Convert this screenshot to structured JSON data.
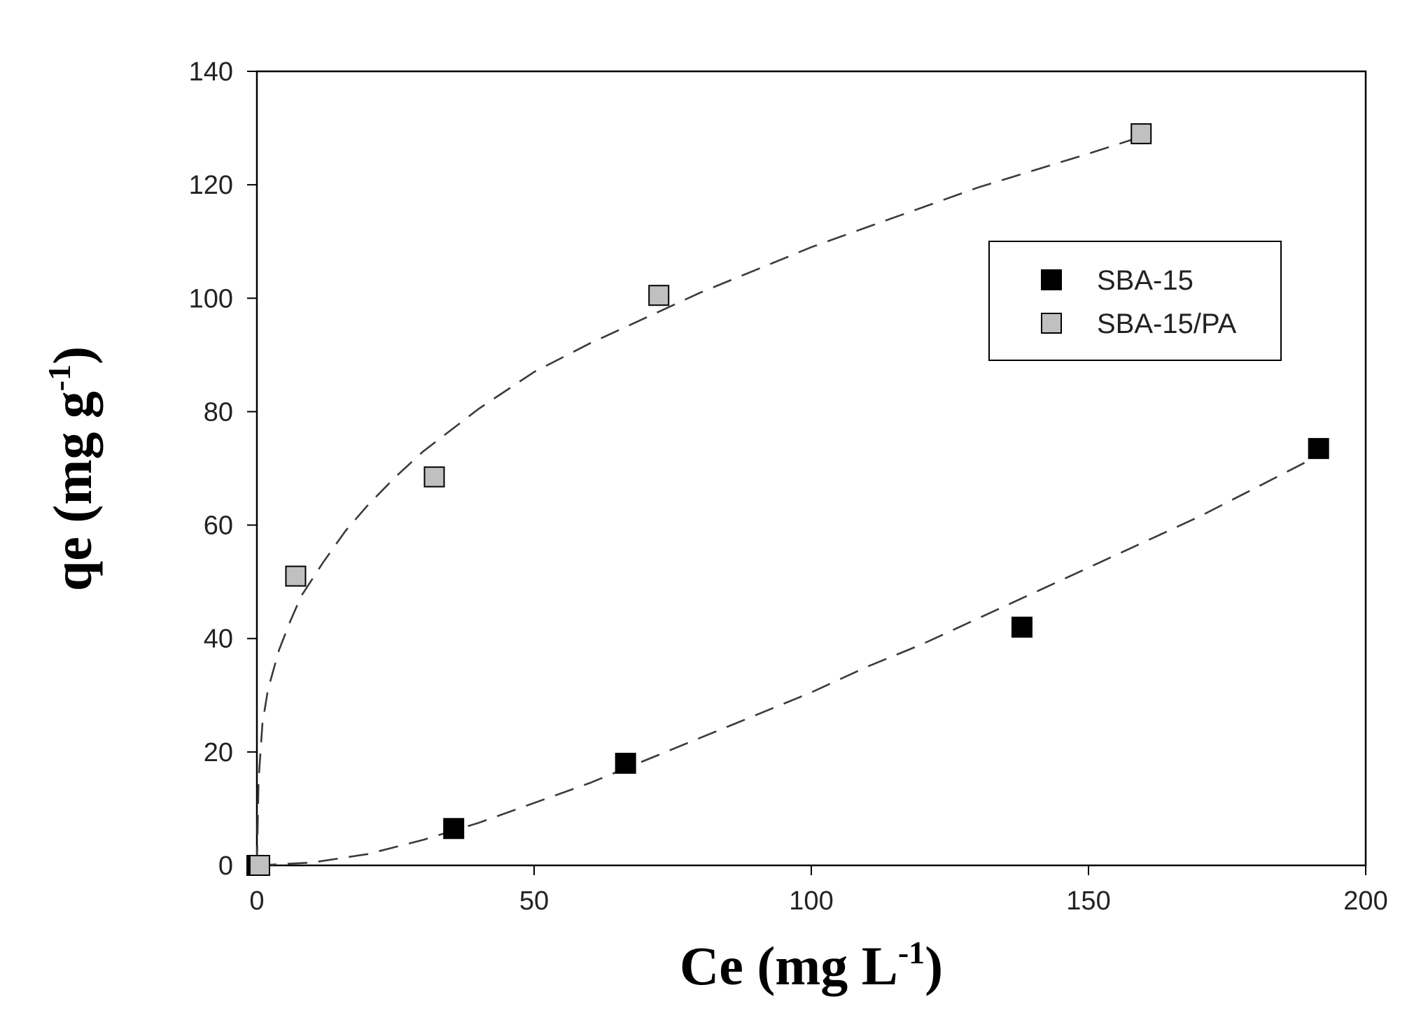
{
  "chart_data": {
    "type": "scatter",
    "title": "",
    "xlabel": {
      "base": "Ce (mg L",
      "sup": "-1",
      "tail": ")"
    },
    "ylabel": {
      "base": "qe (mg g",
      "sup": "-1",
      "tail": ")"
    },
    "xlim": [
      0,
      200
    ],
    "ylim": [
      0,
      140
    ],
    "x_ticks": [
      0,
      50,
      100,
      150,
      200
    ],
    "y_ticks": [
      0,
      20,
      40,
      60,
      80,
      100,
      120,
      140
    ],
    "grid": false,
    "legend_position": "upper-right",
    "series": [
      {
        "name": "SBA-15",
        "marker_color": "#000000",
        "points": [
          [
            0,
            0
          ],
          [
            35.5,
            6.5
          ],
          [
            66.5,
            18
          ],
          [
            138,
            42
          ],
          [
            191.5,
            73.5
          ]
        ],
        "fit_curve": [
          [
            0,
            0
          ],
          [
            10,
            0.5
          ],
          [
            20,
            2
          ],
          [
            30,
            4.5
          ],
          [
            40,
            7.5
          ],
          [
            50,
            11
          ],
          [
            60,
            14.5
          ],
          [
            70,
            18.5
          ],
          [
            80,
            22.5
          ],
          [
            90,
            26.5
          ],
          [
            100,
            30.5
          ],
          [
            110,
            35
          ],
          [
            120,
            39
          ],
          [
            130,
            43.5
          ],
          [
            140,
            48
          ],
          [
            150,
            52.5
          ],
          [
            160,
            57
          ],
          [
            170,
            61.5
          ],
          [
            180,
            66.5
          ],
          [
            190,
            71.5
          ]
        ]
      },
      {
        "name": "SBA-15/PA",
        "marker_color": "#c0c0c0",
        "points": [
          [
            0.5,
            0
          ],
          [
            7,
            51
          ],
          [
            32,
            68.5
          ],
          [
            72.5,
            100.5
          ],
          [
            159.5,
            129
          ]
        ],
        "fit_curve": [
          [
            0,
            0
          ],
          [
            0.3,
            15
          ],
          [
            1,
            25
          ],
          [
            2,
            31
          ],
          [
            4,
            38
          ],
          [
            6,
            43
          ],
          [
            8,
            47.5
          ],
          [
            12,
            53.5
          ],
          [
            16,
            59
          ],
          [
            20,
            63.5
          ],
          [
            25,
            68.5
          ],
          [
            30,
            73
          ],
          [
            40,
            80.5
          ],
          [
            50,
            87
          ],
          [
            60,
            92
          ],
          [
            70,
            96.5
          ],
          [
            80,
            101
          ],
          [
            90,
            105
          ],
          [
            100,
            109
          ],
          [
            110,
            112.5
          ],
          [
            120,
            116
          ],
          [
            130,
            119.5
          ],
          [
            140,
            122.5
          ],
          [
            150,
            125.5
          ],
          [
            158,
            128
          ]
        ]
      }
    ]
  }
}
